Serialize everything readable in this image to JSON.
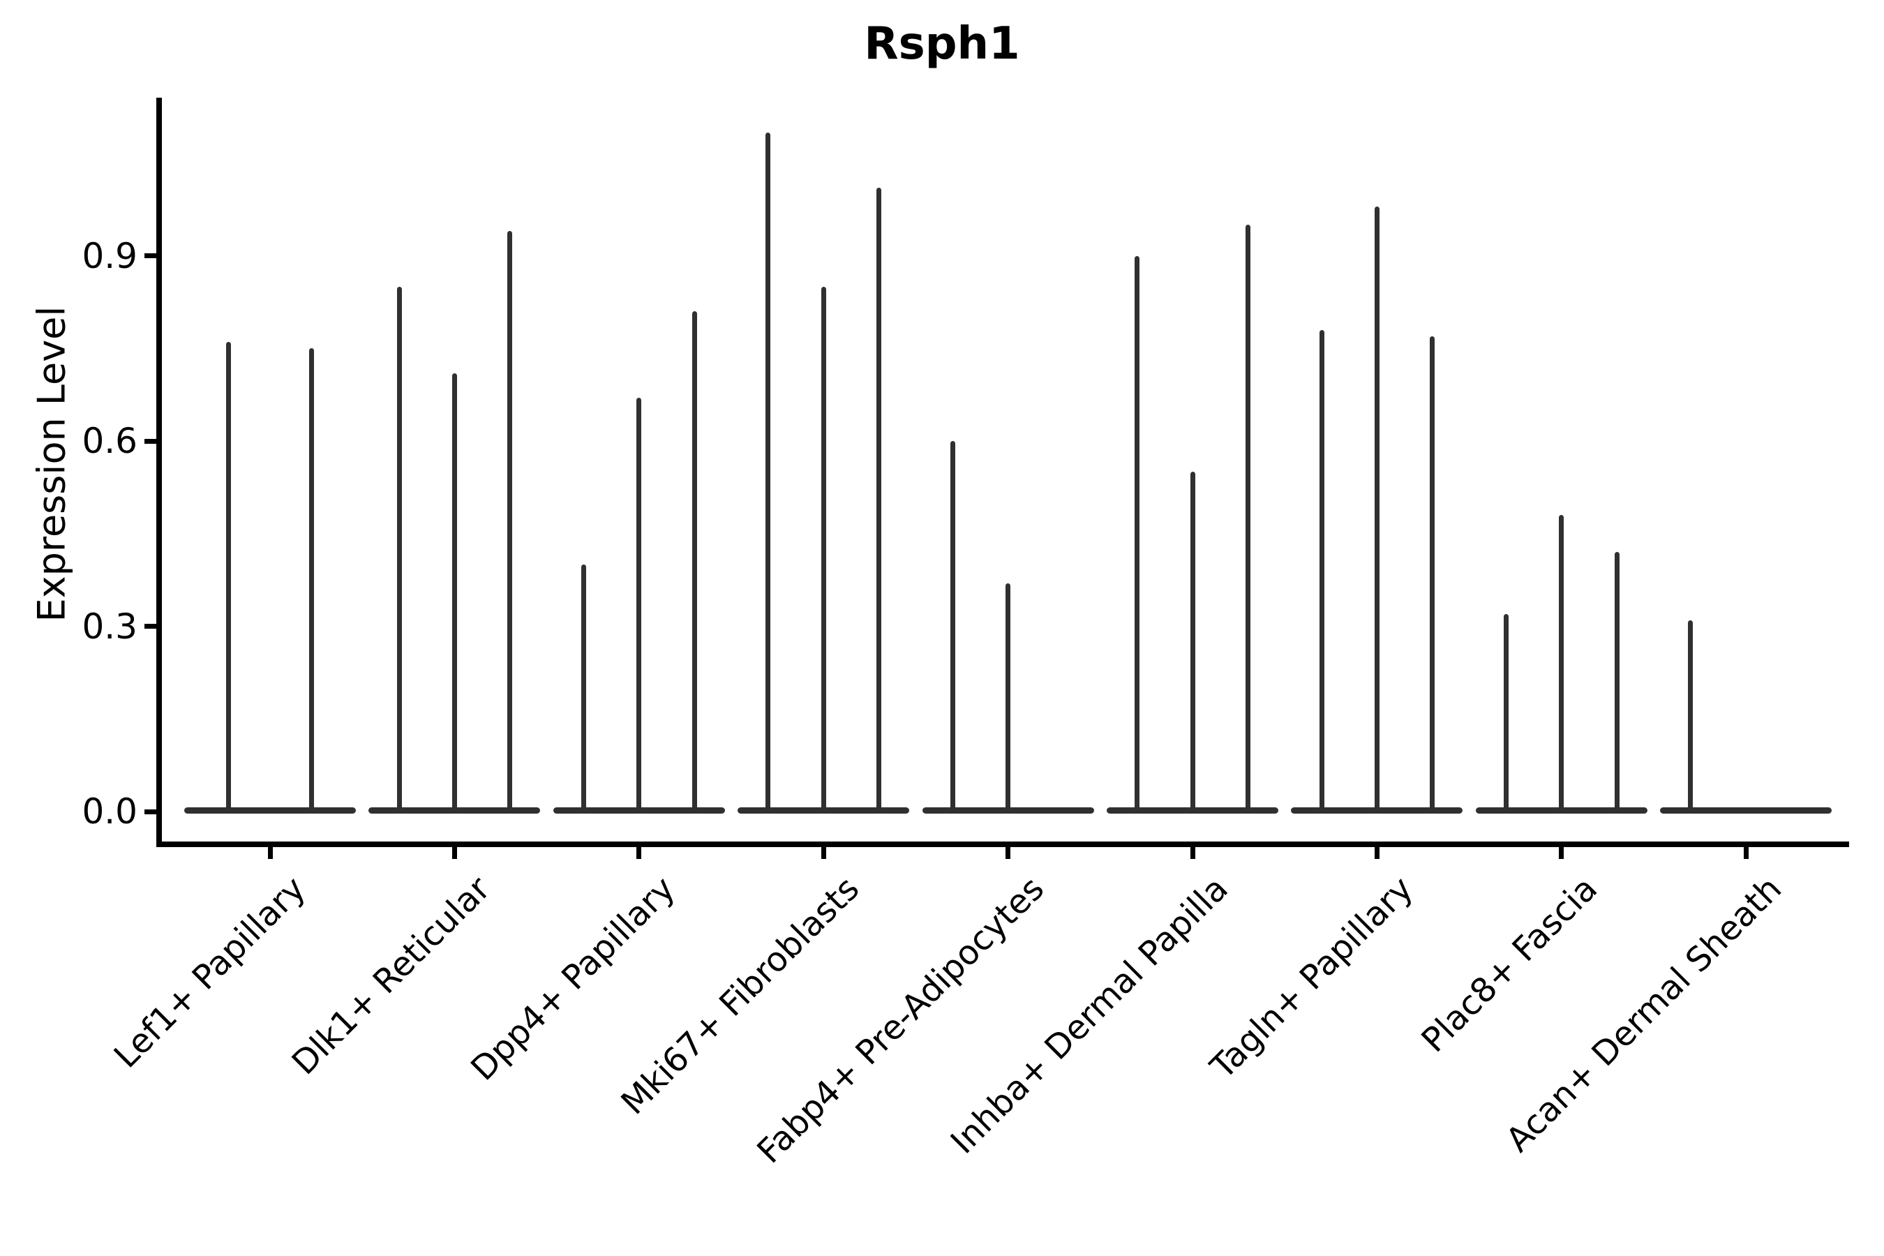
{
  "title": "Rsph1",
  "chart_data": {
    "type": "violin",
    "title": "Rsph1",
    "ylabel": "Expression Level",
    "xlabel": "",
    "ylim": [
      -0.055,
      1.155
    ],
    "yticks": [
      0,
      0.3,
      0.6,
      0.9
    ],
    "ytick_labels": [
      "0.0",
      "0.3",
      "0.6",
      "0.9"
    ],
    "grid": false,
    "legend": false,
    "violin_color": "#303030",
    "axis_color": "#000000",
    "background_color": "#ffffff",
    "categories": [
      "Lef1+ Papillary",
      "Dlk1+ Reticular",
      "Dpp4+ Papillary",
      "Mki67+ Fibroblasts",
      "Fabp4+ Pre-Adipocytes",
      "Inhba+ Dermal Papilla",
      "Tagln+ Papillary",
      "Plac8+ Fascia",
      "Acan+ Dermal Sheath"
    ],
    "groups": [
      {
        "category": "Lef1+ Papillary",
        "violins": [
          {
            "pos": -0.225,
            "max": 0.76
          },
          {
            "pos": 0.225,
            "max": 0.75
          }
        ]
      },
      {
        "category": "Dlk1+ Reticular",
        "violins": [
          {
            "pos": -0.3,
            "max": 0.85
          },
          {
            "pos": 0,
            "max": 0.71
          },
          {
            "pos": 0.3,
            "max": 0.94
          }
        ]
      },
      {
        "category": "Dpp4+ Papillary",
        "violins": [
          {
            "pos": -0.3,
            "max": 0.4
          },
          {
            "pos": 0,
            "max": 0.67
          },
          {
            "pos": 0.3,
            "max": 0.81
          }
        ]
      },
      {
        "category": "Mki67+ Fibroblasts",
        "violins": [
          {
            "pos": -0.3,
            "max": 1.1
          },
          {
            "pos": 0,
            "max": 0.85
          },
          {
            "pos": 0.3,
            "max": 1.01
          }
        ]
      },
      {
        "category": "Fabp4+ Pre-Adipocytes",
        "violins": [
          {
            "pos": -0.3,
            "max": 0.6
          },
          {
            "pos": 0,
            "max": 0.37
          },
          {
            "pos": 0.3,
            "max": 0
          }
        ]
      },
      {
        "category": "Inhba+ Dermal Papilla",
        "violins": [
          {
            "pos": -0.3,
            "max": 0.9
          },
          {
            "pos": 0,
            "max": 0.55
          },
          {
            "pos": 0.3,
            "max": 0.95
          }
        ]
      },
      {
        "category": "Tagln+ Papillary",
        "violins": [
          {
            "pos": -0.3,
            "max": 0.78
          },
          {
            "pos": 0,
            "max": 0.98
          },
          {
            "pos": 0.3,
            "max": 0.77
          }
        ]
      },
      {
        "category": "Plac8+ Fascia",
        "violins": [
          {
            "pos": -0.3,
            "max": 0.32
          },
          {
            "pos": 0,
            "max": 0.48
          },
          {
            "pos": 0.3,
            "max": 0.42
          }
        ]
      },
      {
        "category": "Acan+ Dermal Sheath",
        "violins": [
          {
            "pos": -0.3,
            "max": 0.31
          },
          {
            "pos": 0,
            "max": 0
          },
          {
            "pos": 0.3,
            "max": 0
          }
        ]
      }
    ]
  }
}
